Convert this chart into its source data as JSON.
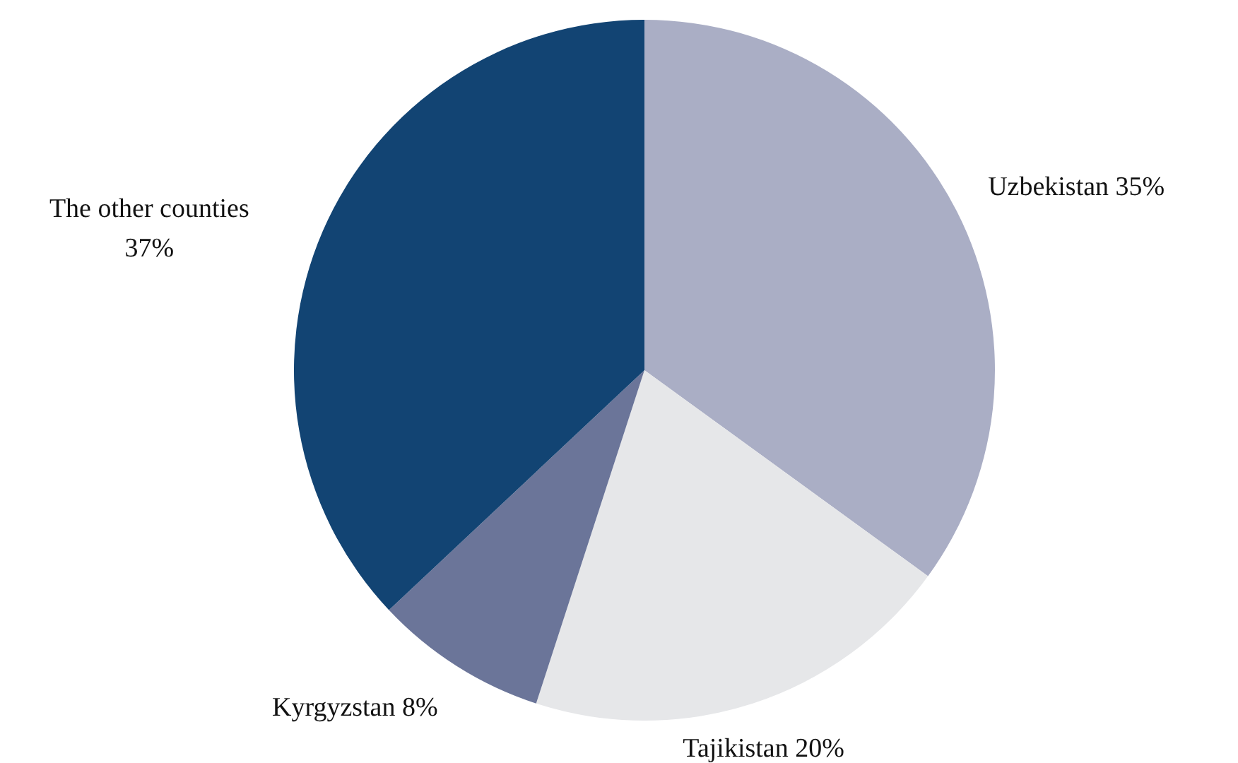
{
  "chart_data": {
    "type": "pie",
    "categories": [
      "Uzbekistan",
      "Tajikistan",
      "Kyrgyzstan",
      "The other counties"
    ],
    "values": [
      35,
      20,
      8,
      37
    ],
    "colors": [
      "#aaaec5",
      "#e6e7e9",
      "#6b7599",
      "#124473"
    ],
    "value_labels": [
      "35%",
      "20%",
      "8%",
      "37%"
    ]
  }
}
